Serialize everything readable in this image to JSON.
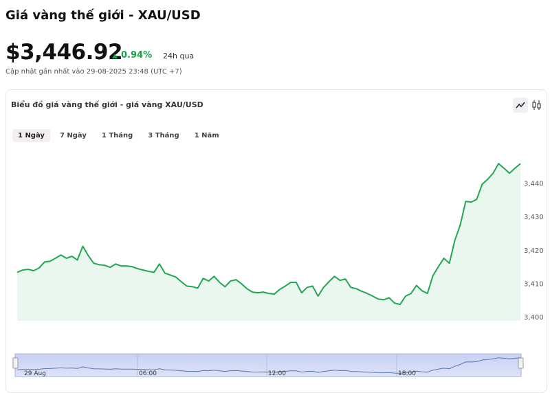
{
  "header": {
    "title": "Giá vàng thế giới - XAU/USD",
    "price": "$3,446.92",
    "change": "0.94%",
    "period": "24h qua",
    "updated": "Cập nhật gần nhất vào 29-08-2025 23:48 (UTC +7)"
  },
  "chart_card": {
    "title": "Biểu đồ giá vàng thế giới - giá vàng XAU/USD",
    "tabs": [
      "1 Ngày",
      "7 Ngày",
      "1 Tháng",
      "3 Tháng",
      "1 Năm"
    ]
  },
  "chart_data": {
    "type": "area",
    "color": "#22a652",
    "values": [
      3413.3,
      3414.0,
      3414.2,
      3413.8,
      3414.6,
      3416.4,
      3416.6,
      3417.5,
      3418.5,
      3417.5,
      3418.1,
      3417.0,
      3421.1,
      3418.3,
      3416.0,
      3415.6,
      3415.4,
      3414.8,
      3415.8,
      3415.2,
      3415.2,
      3415.0,
      3414.4,
      3414.0,
      3413.6,
      3413.3,
      3415.8,
      3413.1,
      3412.5,
      3411.9,
      3410.5,
      3409.2,
      3409.0,
      3408.6,
      3411.5,
      3410.7,
      3412.1,
      3410.3,
      3409.0,
      3410.7,
      3411.1,
      3409.9,
      3408.4,
      3407.4,
      3407.2,
      3407.4,
      3407.0,
      3406.8,
      3408.2,
      3409.2,
      3410.3,
      3410.3,
      3407.2,
      3408.8,
      3409.2,
      3406.2,
      3408.8,
      3410.5,
      3412.1,
      3410.9,
      3411.3,
      3408.8,
      3408.4,
      3407.6,
      3407.0,
      3406.2,
      3405.3,
      3405.1,
      3405.7,
      3404.1,
      3403.7,
      3406.2,
      3407.0,
      3409.4,
      3407.8,
      3407.0,
      3412.3,
      3415.0,
      3417.5,
      3416.0,
      3422.8,
      3427.5,
      3434.5,
      3434.3,
      3435.1,
      3439.6,
      3441.1,
      3442.9,
      3445.8,
      3444.4,
      3442.9,
      3444.4,
      3445.8
    ],
    "ylim": [
      3398.8,
      3452.6
    ],
    "yticks": [
      {
        "value": 3400,
        "label": "3,400"
      },
      {
        "value": 3410,
        "label": "3,410"
      },
      {
        "value": 3420,
        "label": "3,420"
      },
      {
        "value": 3430,
        "label": "3,430"
      },
      {
        "value": 3440,
        "label": "3,440"
      }
    ],
    "grid": false
  },
  "navigator": {
    "labels": [
      "29 Aug",
      "06:00",
      "12:00",
      "18:00"
    ]
  }
}
